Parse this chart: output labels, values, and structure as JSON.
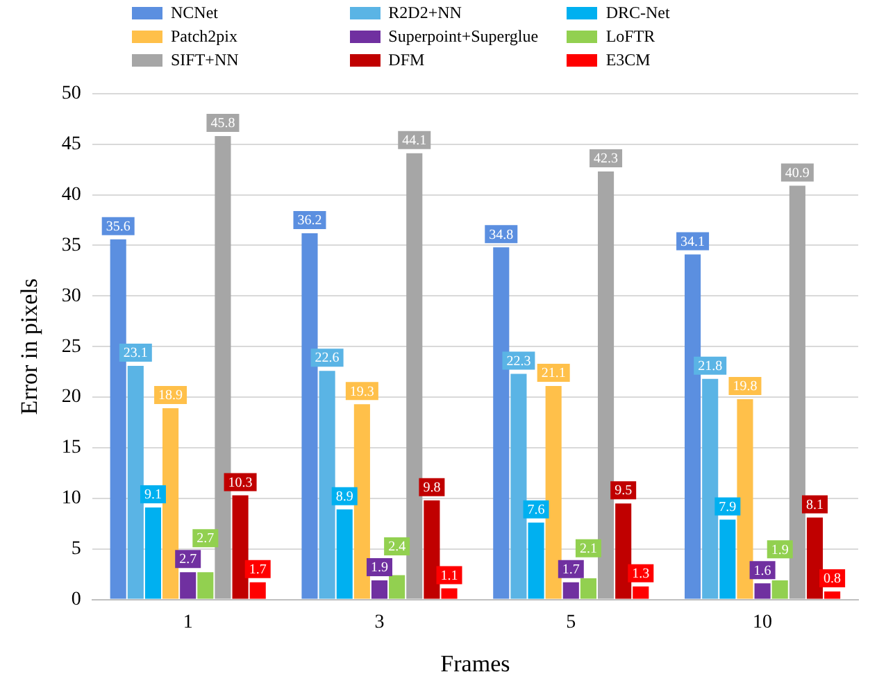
{
  "chart_data": {
    "type": "bar",
    "xlabel": "Frames",
    "ylabel": "Error in pixels",
    "categories": [
      "1",
      "3",
      "5",
      "10"
    ],
    "series": [
      {
        "name": "NCNet",
        "color": "#5b8fe0",
        "values": [
          35.6,
          36.2,
          34.8,
          34.1
        ]
      },
      {
        "name": "R2D2+NN",
        "color": "#5ab4e5",
        "values": [
          23.1,
          22.6,
          22.3,
          21.8
        ]
      },
      {
        "name": "DRC-Net",
        "color": "#00b0f0",
        "values": [
          9.1,
          8.9,
          7.6,
          7.9
        ]
      },
      {
        "name": "Patch2pix",
        "color": "#ffc04a",
        "values": [
          18.9,
          19.3,
          21.1,
          19.8
        ]
      },
      {
        "name": "Superpoint+Superglue",
        "color": "#7030a0",
        "values": [
          2.7,
          1.9,
          1.7,
          1.6
        ]
      },
      {
        "name": "LoFTR",
        "color": "#92d050",
        "values": [
          2.7,
          2.4,
          2.1,
          1.9
        ]
      },
      {
        "name": "SIFT+NN",
        "color": "#a6a6a6",
        "values": [
          45.8,
          44.1,
          42.3,
          40.9
        ]
      },
      {
        "name": "DFM",
        "color": "#c00000",
        "values": [
          10.3,
          9.8,
          9.5,
          8.1
        ]
      },
      {
        "name": "E3CM",
        "color": "#ff0000",
        "values": [
          1.7,
          1.1,
          1.3,
          0.8
        ]
      }
    ],
    "ylim": [
      0,
      50
    ],
    "yticks": [
      0,
      5,
      10,
      15,
      20,
      25,
      30,
      35,
      40,
      45,
      50
    ],
    "grid": "y",
    "legend": "top",
    "data_labels": true
  }
}
